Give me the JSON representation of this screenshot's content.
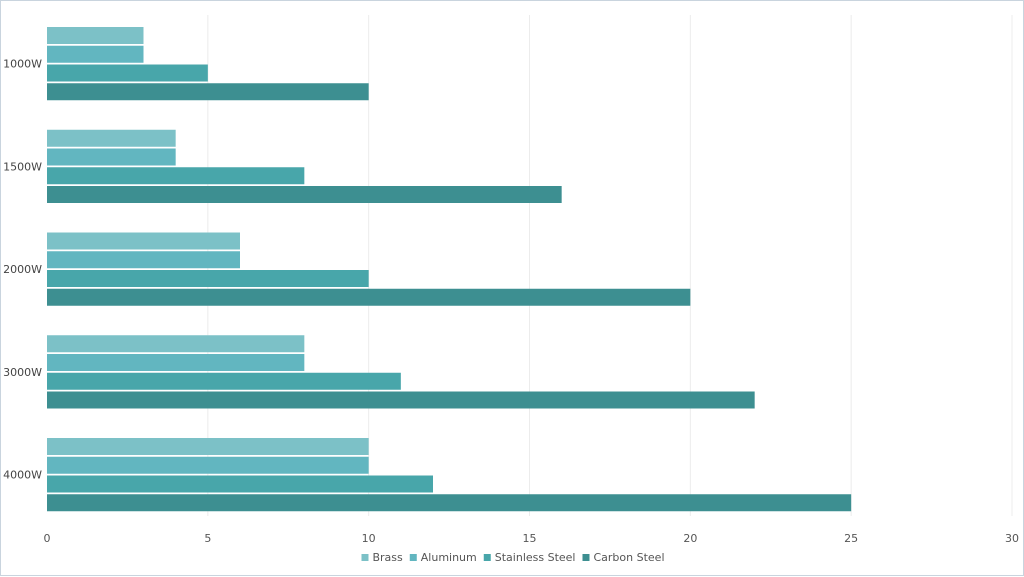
{
  "chart_data": {
    "type": "bar",
    "orientation": "horizontal",
    "categories": [
      "1000W",
      "1500W",
      "2000W",
      "3000W",
      "4000W"
    ],
    "series": [
      {
        "name": "Brass",
        "values": [
          3,
          4,
          6,
          8,
          10
        ],
        "color": "#7cc1c7"
      },
      {
        "name": "Aluminum",
        "values": [
          3,
          4,
          6,
          8,
          10
        ],
        "color": "#62b6c0"
      },
      {
        "name": "Stainless Steel",
        "values": [
          5,
          8,
          10,
          11,
          12
        ],
        "color": "#48a6aa"
      },
      {
        "name": "Carbon Steel",
        "values": [
          10,
          16,
          20,
          22,
          25
        ],
        "color": "#3d8f91"
      }
    ],
    "xlim": [
      0,
      30
    ],
    "xticks": [
      "0",
      "5",
      "10",
      "15",
      "20",
      "25",
      "30"
    ],
    "grid": true,
    "legend_position": "bottom-center",
    "title": "",
    "xlabel": "",
    "ylabel": ""
  }
}
